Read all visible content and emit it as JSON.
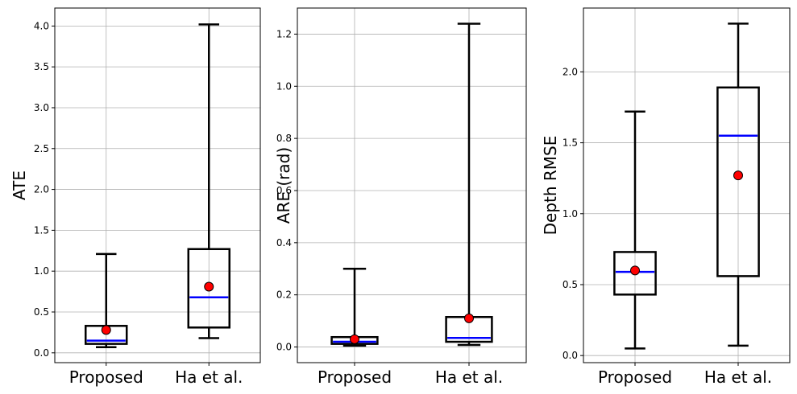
{
  "chart_data": [
    {
      "type": "boxplot",
      "ylabel": "ATE",
      "categories": [
        "Proposed",
        "Ha et al."
      ],
      "ylim": [
        -0.12,
        4.22
      ],
      "yticks": [
        0.0,
        0.5,
        1.0,
        1.5,
        2.0,
        2.5,
        3.0,
        3.5,
        4.0
      ],
      "ytick_labels": [
        "0.0",
        "0.5",
        "1.0",
        "1.5",
        "2.0",
        "2.5",
        "3.0",
        "3.5",
        "4.0"
      ],
      "grid": true,
      "boxes": [
        {
          "whislo": 0.07,
          "q1": 0.11,
          "median": 0.15,
          "q3": 0.33,
          "whishi": 1.21,
          "mean": 0.28
        },
        {
          "whislo": 0.18,
          "q1": 0.31,
          "median": 0.68,
          "q3": 1.27,
          "whishi": 4.02,
          "mean": 0.81
        }
      ]
    },
    {
      "type": "boxplot",
      "ylabel": "ARE (rad)",
      "categories": [
        "Proposed",
        "Ha et al."
      ],
      "ylim": [
        -0.06,
        1.3
      ],
      "yticks": [
        0.0,
        0.2,
        0.4,
        0.6,
        0.8,
        1.0,
        1.2
      ],
      "ytick_labels": [
        "0.0",
        "0.2",
        "0.4",
        "0.6",
        "0.8",
        "1.0",
        "1.2"
      ],
      "grid": true,
      "boxes": [
        {
          "whislo": 0.005,
          "q1": 0.012,
          "median": 0.02,
          "q3": 0.038,
          "whishi": 0.3,
          "mean": 0.03
        },
        {
          "whislo": 0.008,
          "q1": 0.02,
          "median": 0.035,
          "q3": 0.115,
          "whishi": 1.24,
          "mean": 0.11
        }
      ]
    },
    {
      "type": "boxplot",
      "ylabel": "Depth RMSE",
      "categories": [
        "Proposed",
        "Ha et al."
      ],
      "ylim": [
        -0.05,
        2.45
      ],
      "yticks": [
        0.0,
        0.5,
        1.0,
        1.5,
        2.0
      ],
      "ytick_labels": [
        "0.0",
        "0.5",
        "1.0",
        "1.5",
        "2.0"
      ],
      "grid": true,
      "boxes": [
        {
          "whislo": 0.05,
          "q1": 0.43,
          "median": 0.59,
          "q3": 0.73,
          "whishi": 1.72,
          "mean": 0.6
        },
        {
          "whislo": 0.07,
          "q1": 0.56,
          "median": 1.55,
          "q3": 1.89,
          "whishi": 2.34,
          "mean": 1.27
        }
      ]
    }
  ],
  "colors": {
    "box": "#000000",
    "median": "#0000ff",
    "mean_fill": "#ff0000",
    "mean_edge": "#000000",
    "grid": "#b0b0b0"
  }
}
